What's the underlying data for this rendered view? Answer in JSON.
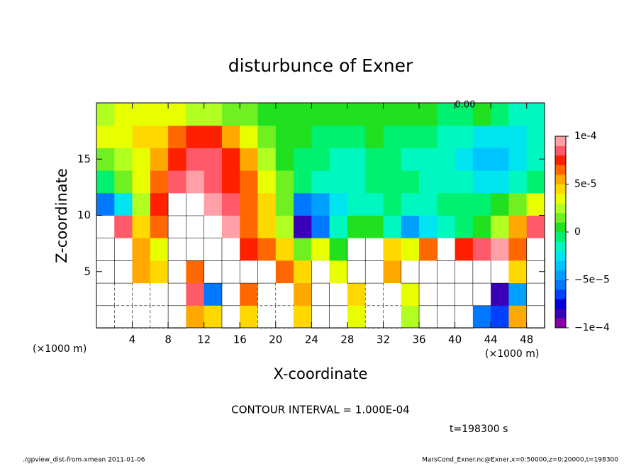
{
  "chart_data": {
    "type": "contour",
    "title": "disturbunce of Exner",
    "xlabel": "X-coordinate",
    "ylabel": "Z-coordinate",
    "xunit": "(×1000 m)",
    "yunit": "(×1000 m)",
    "xlim": [
      0,
      50
    ],
    "ylim": [
      0,
      20
    ],
    "xticks": [
      4,
      8,
      12,
      16,
      20,
      24,
      28,
      32,
      36,
      40,
      44,
      48
    ],
    "yticks": [
      5,
      10,
      15
    ],
    "x": [
      1,
      3,
      5,
      7,
      9,
      11,
      13,
      15,
      17,
      19,
      21,
      23,
      25,
      27,
      29,
      31,
      33,
      35,
      37,
      39,
      41,
      43,
      45,
      47,
      49
    ],
    "y": [
      1,
      3,
      5,
      7,
      9,
      11,
      13,
      15,
      17,
      19
    ],
    "z": [
      [
        0.00011,
        -0.00011,
        -0.00013,
        -0.00013,
        0.00011,
        5e-05,
        4e-05,
        0.00011,
        4e-05,
        -0.00012,
        -0.00013,
        4e-05,
        0.00011,
        0.00011,
        3e-05,
        -0.00011,
        -0.00012,
        2e-05,
        0.00012,
        0.00012,
        0.00012,
        -6e-05,
        -7e-05,
        5e-05,
        0.00011
      ],
      [
        0.00012,
        -0.00011,
        -0.00013,
        -0.00012,
        0.00011,
        8e-05,
        -6e-05,
        0.00011,
        6e-05,
        -0.00012,
        -0.00013,
        5e-05,
        0.00011,
        0.00011,
        4e-05,
        -0.00011,
        -0.00012,
        3e-05,
        0.00011,
        0.00012,
        0.00012,
        0.00012,
        -8e-05,
        -5e-05,
        0.00011
      ],
      [
        0.00013,
        0.00013,
        5e-05,
        4e-05,
        0.00011,
        6e-05,
        0.00012,
        0.00011,
        0.00012,
        0.00012,
        6e-05,
        4e-05,
        0.00011,
        3e-05,
        0.00013,
        0.00013,
        5e-05,
        0.00011,
        0.00012,
        0.00012,
        0.00012,
        0.00012,
        0.00011,
        4e-05,
        0.00011
      ],
      [
        0.00013,
        0.00013,
        5e-05,
        3e-05,
        0.00012,
        0.00013,
        0.00012,
        0.00011,
        7e-05,
        6e-05,
        4e-05,
        1e-05,
        3e-05,
        0,
        0.00014,
        0.00012,
        4e-05,
        3e-05,
        6e-05,
        0.00011,
        7e-05,
        8e-05,
        9e-05,
        6e-05,
        0.00011
      ],
      [
        0.00012,
        8e-05,
        4e-05,
        6e-05,
        0.00011,
        0.00011,
        0.00011,
        9e-05,
        6e-05,
        4e-05,
        2e-05,
        -8e-05,
        -6e-05,
        -2e-05,
        0,
        0,
        -2e-05,
        -5e-05,
        -3e-05,
        -2e-05,
        -1e-05,
        0,
        2e-05,
        5e-05,
        8e-05
      ],
      [
        -6e-05,
        -3e-05,
        2e-05,
        7e-05,
        0.00011,
        0.00011,
        9e-05,
        8e-05,
        6e-05,
        4e-05,
        1e-05,
        -6e-05,
        -5e-05,
        -3e-05,
        -2e-05,
        -2e-05,
        -1e-05,
        -2e-05,
        -2e-05,
        -1e-05,
        -1e-05,
        -1e-05,
        0,
        1e-05,
        3e-05
      ],
      [
        -1e-05,
        1e-05,
        3e-05,
        6e-05,
        8e-05,
        9e-05,
        8e-05,
        7e-05,
        6e-05,
        3e-05,
        1e-05,
        -1e-05,
        -2e-05,
        -2e-05,
        -2e-05,
        -1e-05,
        -1e-05,
        -1e-05,
        -2e-05,
        -2e-05,
        -2e-05,
        -3e-05,
        -3e-05,
        -2e-05,
        -1e-05
      ],
      [
        1e-05,
        2e-05,
        3e-05,
        5e-05,
        7e-05,
        8e-05,
        8e-05,
        7e-05,
        5e-05,
        2e-05,
        0,
        -1e-05,
        -1e-05,
        -2e-05,
        -2e-05,
        -1e-05,
        -1e-05,
        -2e-05,
        -2e-05,
        -2e-05,
        -3e-05,
        -4e-05,
        -4e-05,
        -3e-05,
        -2e-05
      ],
      [
        3e-05,
        3e-05,
        4e-05,
        4e-05,
        6e-05,
        7e-05,
        7e-05,
        5e-05,
        3e-05,
        1e-05,
        0,
        0,
        -1e-05,
        -1e-05,
        -1e-05,
        0,
        -1e-05,
        -1e-05,
        -1e-05,
        -2e-05,
        -2e-05,
        -3e-05,
        -3e-05,
        -3e-05,
        -2e-05
      ],
      [
        2e-05,
        3e-05,
        3e-05,
        3e-05,
        3e-05,
        2e-05,
        2e-05,
        1e-05,
        1e-05,
        0,
        0,
        0,
        0,
        0,
        0,
        0,
        0,
        0,
        0,
        -1e-05,
        -1e-05,
        0,
        -1e-05,
        -2e-05,
        -2e-05
      ]
    ],
    "clim": [
      -0.0001,
      0.0001
    ],
    "colors": [
      "#8a00a8",
      "#3a00b8",
      "#0000dc",
      "#0040ff",
      "#0078ff",
      "#00a0ff",
      "#00c4ff",
      "#00e4f0",
      "#00f8c0",
      "#00f070",
      "#20e020",
      "#70f020",
      "#b0ff20",
      "#e8ff00",
      "#ffd800",
      "#ffa800",
      "#ff6800",
      "#ff2000",
      "#ff5a6a",
      "#ffa0a8"
    ],
    "cticks": [
      {
        "value": 0.0001,
        "label": "1e-4"
      },
      {
        "value": 5e-05,
        "label": "5e-5"
      },
      0,
      {
        "value": -5e-05,
        "label": "−5e−5"
      },
      {
        "value": -0.0001,
        "label": "−1e−4"
      }
    ],
    "contour_label": "0.00",
    "annotation": "CONTOUR INTERVAL = 1.000E-04",
    "time": "t=198300 s",
    "footer_left": "./gpview_dist-from-xmean  2011-01-06",
    "footer_right": "MarsCond_Exner.nc@Exner,x=0:50000,z=0:20000,t=198300"
  }
}
